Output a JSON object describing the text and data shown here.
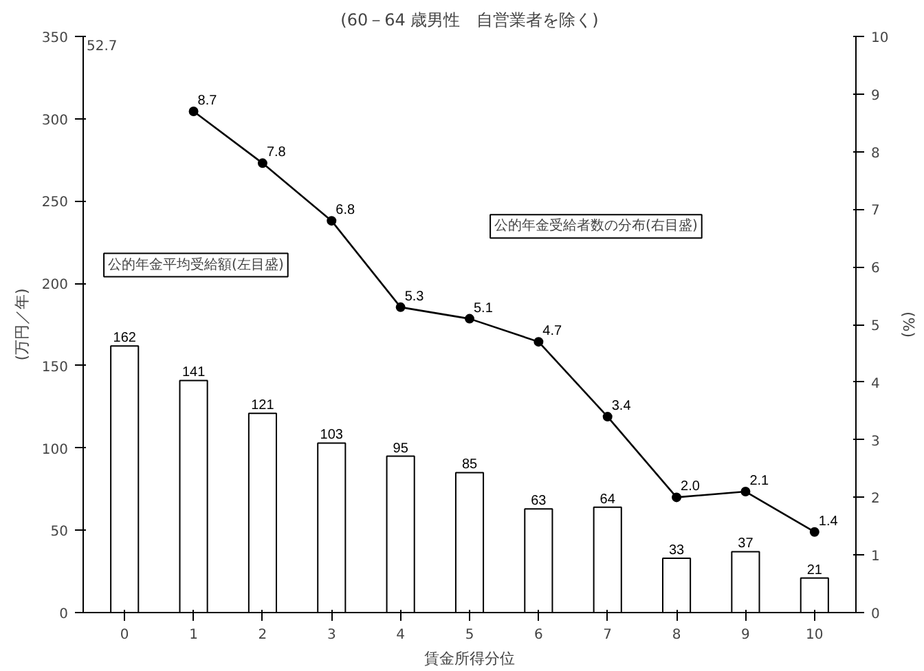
{
  "chart_data": {
    "type": "bar",
    "subtitle": "(60－64 歳男性　自営業者を除く)",
    "xlabel": "賃金所得分位",
    "ylabel": "(万円／年)",
    "y2label": "(%)",
    "categories": [
      "0",
      "1",
      "2",
      "3",
      "4",
      "5",
      "6",
      "7",
      "8",
      "9",
      "10"
    ],
    "series": [
      {
        "name": "公的年金平均受給額(左目盛)",
        "color": "#ffffff",
        "values": [
          162,
          141,
          121,
          103,
          95,
          85,
          63,
          64,
          33,
          37,
          21
        ]
      },
      {
        "name": "公的年金受給者数の分布(右目盛)",
        "type": "line",
        "axis": "y2",
        "color": "#000000",
        "marker": "circle",
        "values": [
          null,
          8.7,
          7.8,
          6.8,
          5.3,
          5.1,
          4.7,
          3.4,
          2.0,
          2.1,
          1.4
        ],
        "value_labels": [
          null,
          "8.7",
          "7.8",
          "6.8",
          "5.3",
          "5.1",
          "4.7",
          "3.4",
          "2.0",
          "2.1",
          "1.4"
        ]
      }
    ],
    "annotations": [
      "52.7"
    ],
    "ylim": [
      0,
      350
    ],
    "yticks": [
      0,
      50,
      100,
      150,
      200,
      250,
      300,
      350
    ],
    "y2lim": [
      0,
      10
    ],
    "y2ticks": [
      0,
      1,
      2,
      3,
      4,
      5,
      6,
      7,
      8,
      9,
      10
    ],
    "data_labels": true,
    "grid": false
  }
}
